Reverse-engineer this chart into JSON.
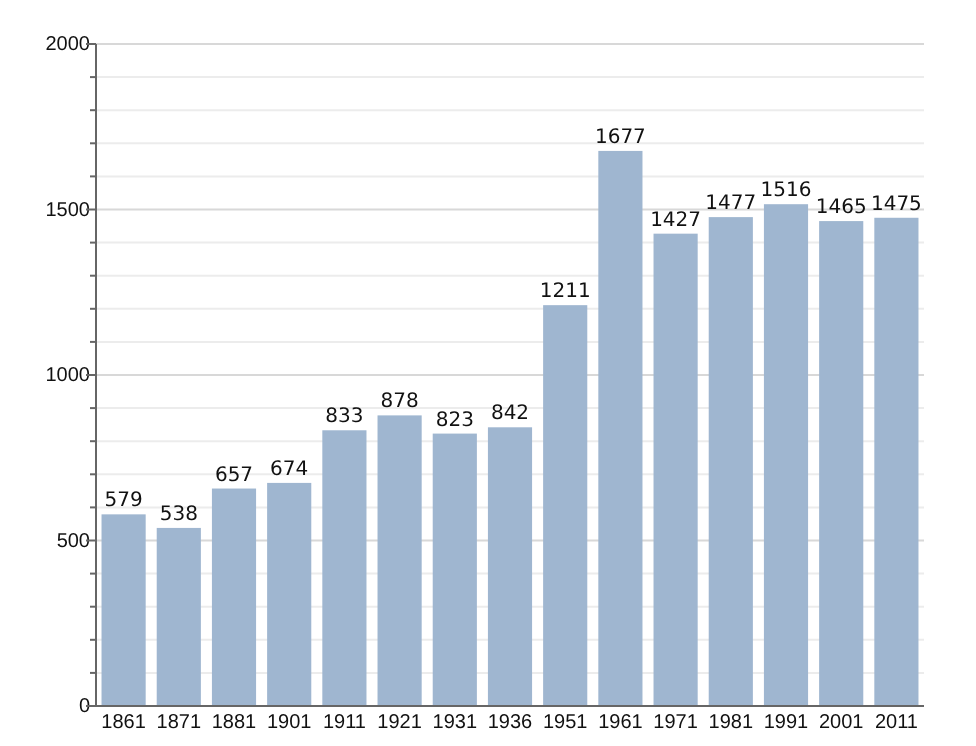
{
  "chart_data": {
    "type": "bar",
    "categories": [
      "1861",
      "1871",
      "1881",
      "1901",
      "1911",
      "1921",
      "1931",
      "1936",
      "1951",
      "1961",
      "1971",
      "1981",
      "1991",
      "2001",
      "2011"
    ],
    "values": [
      579,
      538,
      657,
      674,
      833,
      878,
      823,
      842,
      1211,
      1677,
      1427,
      1477,
      1516,
      1465,
      1475
    ],
    "color": "#9fb6d0",
    "ylim": [
      0,
      2000
    ],
    "yticks": [
      0,
      {
        "value": 100,
        "label": null
      },
      {
        "value": 200,
        "label": null
      },
      {
        "value": 300,
        "label": null
      },
      {
        "value": 400,
        "label": null
      },
      500,
      {
        "value": 600,
        "label": null
      },
      {
        "value": 700,
        "label": null
      },
      {
        "value": 800,
        "label": null
      },
      {
        "value": 900,
        "label": null
      },
      1000,
      {
        "value": 1100,
        "label": null
      },
      {
        "value": 1200,
        "label": null
      },
      {
        "value": 1300,
        "label": null
      },
      {
        "value": 1400,
        "label": null
      },
      1500,
      {
        "value": 1600,
        "label": null
      },
      {
        "value": 1700,
        "label": null
      },
      {
        "value": 1800,
        "label": null
      },
      {
        "value": 1900,
        "label": null
      },
      2000
    ],
    "grid": "y",
    "data_labels": true
  }
}
